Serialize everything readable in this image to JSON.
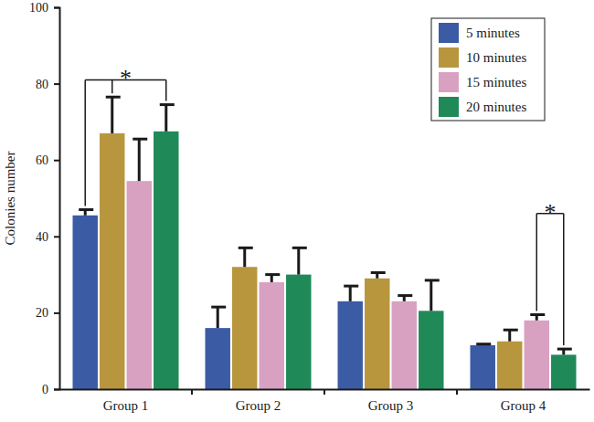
{
  "chart_data": {
    "type": "bar",
    "categories": [
      "Group 1",
      "Group 2",
      "Group 3",
      "Group 4"
    ],
    "series": [
      {
        "name": "5 minutes",
        "color": "#3b5ba5",
        "values": [
          45.5,
          16,
          23,
          11.5
        ],
        "errors": [
          1.5,
          5.5,
          4,
          0.3
        ]
      },
      {
        "name": "10 minutes",
        "color": "#b8963e",
        "values": [
          67,
          32,
          29,
          12.5
        ],
        "errors": [
          9.5,
          5,
          1.5,
          3
        ]
      },
      {
        "name": "15 minutes",
        "color": "#d9a1c1",
        "values": [
          54.5,
          28,
          23,
          18
        ],
        "errors": [
          11,
          2,
          1.5,
          1.5
        ]
      },
      {
        "name": "20 minutes",
        "color": "#1f8a57",
        "values": [
          67.5,
          30,
          20.5,
          9
        ],
        "errors": [
          7,
          7,
          8,
          1.5
        ]
      }
    ],
    "y_label": "Colonies number",
    "ylim": [
      0,
      100
    ],
    "yticks": [
      0,
      20,
      40,
      60,
      80,
      100
    ],
    "legend": "top-right",
    "annotations": [
      {
        "text": "*",
        "category": "Group 1",
        "series": [
          "5 minutes",
          "10 minutes",
          "20 minutes"
        ],
        "y": 81
      },
      {
        "text": "*",
        "category": "Group 4",
        "series": [
          "15 minutes",
          "20 minutes"
        ],
        "y": 46
      }
    ]
  }
}
